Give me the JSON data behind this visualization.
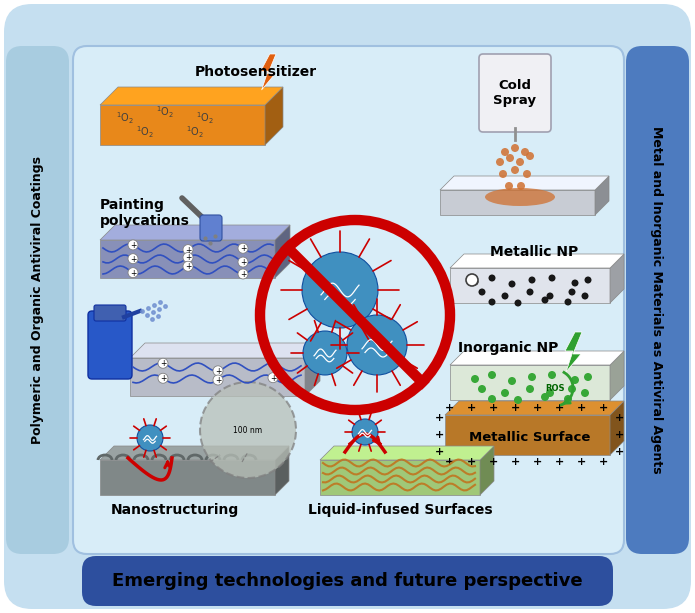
{
  "bg_outer": "#c5dff0",
  "bg_inner": "#d8edf8",
  "left_bar_color": "#a8cce0",
  "right_bar_color": "#4d7bbf",
  "bottom_bar_color": "#2d4f9e",
  "title_bottom": "Emerging technologies and future perspective",
  "title_left": "Polymeric and Organic Antiviral Coatings",
  "title_right": "Metal and Inorganic Materials as Antiviral Agents",
  "label_photosensitizer": "Photosensitizer",
  "label_painting": "Painting\npolycations",
  "label_nanostructuring": "Nanostructuring",
  "label_liquid": "Liquid-infused Surfaces",
  "label_cold_spray": "Cold\nSpray",
  "label_metallic_np": "Metallic NP",
  "label_inorganic_np": "Inorganic NP",
  "label_metallic_surface": "Metallic Surface",
  "orange_bolt": "#e06010",
  "green_bolt": "#30a030",
  "red_color": "#cc0000",
  "virus_blue": "#4090c0",
  "plate_orange": "#e8881a",
  "plate_blue_gray": "#8890b8",
  "plate_light_gray": "#b8bcc8",
  "plate_white": "#e0e4ec",
  "plate_green_light": "#a0c878",
  "plate_green_surface": "#88b050",
  "plate_brown": "#b87828",
  "plate_dark_gray": "#808888",
  "spray_blue": "#2858c8",
  "cold_spray_gray": "#c8ccd4"
}
